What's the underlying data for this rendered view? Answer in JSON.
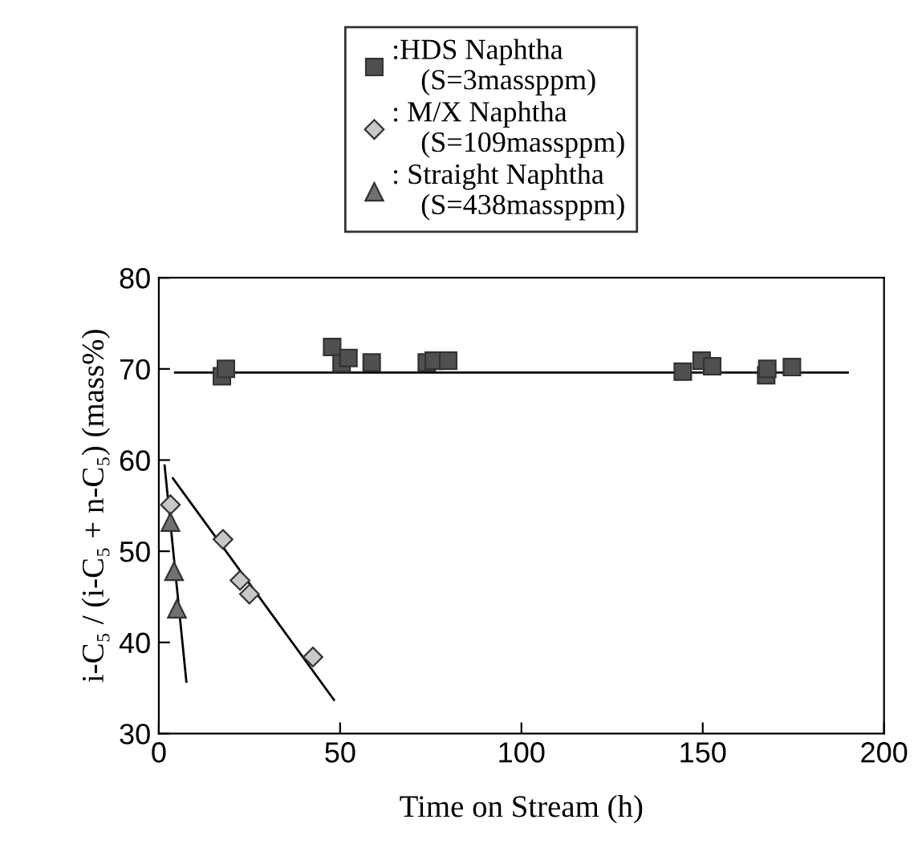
{
  "chart_data": {
    "type": "scatter",
    "xlabel": "Time on Stream (h)",
    "ylabel": "i-C₅ / (i-C₅ + n-C₅) (mass%)",
    "xlim": [
      0,
      200
    ],
    "xticks": [
      0,
      50,
      100,
      150,
      200
    ],
    "ylim": [
      30,
      80
    ],
    "yticks": [
      30,
      40,
      50,
      60,
      70,
      80
    ],
    "grid": false,
    "legend": "top",
    "series": [
      {
        "name": ":HDS Naphtha\n    (S=3massppm)",
        "color": "#505050",
        "marker": "square",
        "x": [
          17.4,
          18.5,
          47.8,
          50.4,
          52.3,
          58.7,
          73.9,
          75.8,
          79.8,
          144.5,
          149.7,
          152.6,
          167.5,
          167.8,
          174.6
        ],
        "values": [
          69.2,
          70.0,
          72.4,
          70.6,
          71.2,
          70.7,
          70.7,
          70.9,
          70.9,
          69.7,
          70.9,
          70.3,
          69.3,
          70.0,
          70.2
        ]
      },
      {
        "name": ": M/X Naphtha\n    (S=109massppm)",
        "color": "#c8c8c8",
        "marker": "diamond",
        "x": [
          3.2,
          17.7,
          22.4,
          25.0,
          42.5
        ],
        "values": [
          55.1,
          51.3,
          46.8,
          45.3,
          38.4
        ]
      },
      {
        "name": ": Straight Naphtha\n    (S=438massppm)",
        "color": "#707070",
        "marker": "triangle",
        "x": [
          3.2,
          4.2,
          5.0
        ],
        "values": [
          53.2,
          47.8,
          43.7
        ]
      },
      {
        "type": "line",
        "color": "#000000",
        "marker": "none",
        "x": [
          4.5,
          190
        ],
        "values": [
          69.6,
          69.6
        ]
      },
      {
        "type": "line",
        "color": "#000000",
        "marker": "none",
        "x": [
          3.9,
          48.3
        ],
        "values": [
          58.0,
          33.7
        ]
      },
      {
        "type": "line",
        "color": "#000000",
        "marker": "none",
        "x": [
          1.6,
          7.6
        ],
        "values": [
          59.4,
          35.7
        ]
      }
    ]
  }
}
